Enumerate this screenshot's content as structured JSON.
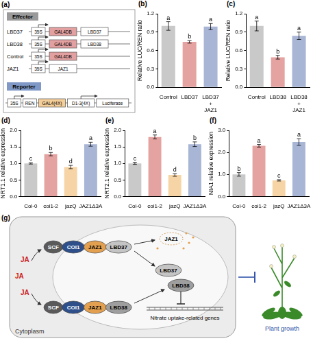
{
  "chart_data": [
    {
      "type": "bar",
      "panel_label": "(b)",
      "y_label": "Relative LUC/REN ratio",
      "categories": [
        "Control",
        "LBD37",
        "LBD37+JAZ1"
      ],
      "values": [
        1.0,
        0.74,
        0.99
      ],
      "errors": [
        0.07,
        0.02,
        0.05
      ],
      "annotations": [
        "a",
        "b",
        "a"
      ],
      "colors": [
        "#c9c9c9",
        "#e4a3a1",
        "#a8b5d5"
      ],
      "ylim": [
        0,
        1.2
      ],
      "yticks": [
        {
          "value": 0,
          "label": "0.0"
        },
        0.3,
        0.6,
        0.9,
        1.2
      ],
      "grid": false
    },
    {
      "type": "bar",
      "panel_label": "(c)",
      "y_label": "Relative LUC/REN ratio",
      "categories": [
        "Control",
        "LBD38",
        "LBD38+JAZ1"
      ],
      "values": [
        1.0,
        0.49,
        0.84
      ],
      "errors": [
        0.08,
        0.03,
        0.06
      ],
      "annotations": [
        "a",
        "b",
        "a"
      ],
      "colors": [
        "#c9c9c9",
        "#e4a3a1",
        "#a8b5d5"
      ],
      "ylim": [
        0,
        1.2
      ],
      "yticks": [
        {
          "value": 0,
          "label": "0.0"
        },
        0.3,
        0.6,
        0.9,
        1.2
      ],
      "grid": false
    },
    {
      "type": "bar",
      "panel_label": "(d)",
      "y_label": "NRT1.1 relative expression",
      "categories": [
        "Col-0",
        "coi1-2",
        "jazQ",
        "JAZ1Δ3A"
      ],
      "values": [
        1.0,
        1.28,
        0.89,
        1.58
      ],
      "errors": [
        0.02,
        0.05,
        0.05,
        0.06
      ],
      "annotations": [
        "c",
        "b",
        "d",
        "a"
      ],
      "colors": [
        "#c9c9c9",
        "#e4a3a1",
        "#f6d4a6",
        "#a8b5d5"
      ],
      "ylim": [
        0,
        2
      ],
      "yticks": [
        {
          "value": 0,
          "label": "0.0"
        },
        0.5,
        {
          "value": 1,
          "label": "1.0"
        },
        1.5,
        {
          "value": 2,
          "label": "2.0"
        }
      ],
      "grid": false
    },
    {
      "type": "bar",
      "panel_label": "(e)",
      "y_label": "NRT2.1 relative expression",
      "categories": [
        "Col-0",
        "coi1-2",
        "jazQ",
        "JAZ1Δ3A"
      ],
      "values": [
        1.0,
        1.8,
        0.65,
        1.58
      ],
      "errors": [
        0.03,
        0.06,
        0.04,
        0.07
      ],
      "annotations": [
        "c",
        "a",
        "d",
        "b"
      ],
      "colors": [
        "#c9c9c9",
        "#e4a3a1",
        "#f6d4a6",
        "#a8b5d5"
      ],
      "ylim": [
        0,
        2
      ],
      "yticks": [
        {
          "value": 0,
          "label": "0.0"
        },
        0.5,
        {
          "value": 1,
          "label": "1.0"
        },
        1.5,
        {
          "value": 2,
          "label": "2.0"
        }
      ],
      "grid": false
    },
    {
      "type": "bar",
      "panel_label": "(f)",
      "y_label": "NIA1 relative expression",
      "categories": [
        "Col-0",
        "coi1-2",
        "jazQ",
        "JAZ1Δ3A"
      ],
      "values": [
        1.0,
        2.3,
        0.73,
        2.47
      ],
      "errors": [
        0.08,
        0.06,
        0.03,
        0.15
      ],
      "annotations": [
        "b",
        "a",
        "c",
        "a"
      ],
      "colors": [
        "#c9c9c9",
        "#e4a3a1",
        "#f6d4a6",
        "#a8b5d5"
      ],
      "ylim": [
        0,
        3
      ],
      "yticks": [
        {
          "value": 0,
          "label": "0.0"
        },
        {
          "value": 1,
          "label": "1.0"
        },
        {
          "value": 2,
          "label": "2.0"
        },
        {
          "value": 3,
          "label": "3.0"
        }
      ],
      "grid": false
    }
  ],
  "panel_a": {
    "label": "(a)",
    "effector_title": "Effector",
    "effector_color": "#9a9a9a",
    "effectors": [
      {
        "name": "LBD37",
        "parts": [
          {
            "text": "35S",
            "color": "#ffffff",
            "promoter": true
          },
          {
            "text": "GAL4DB",
            "color": "#e3a0a0"
          },
          {
            "text": "LBD37",
            "color": "#ffffff"
          }
        ]
      },
      {
        "name": "LBD38",
        "parts": [
          {
            "text": "35S",
            "color": "#ffffff",
            "promoter": true
          },
          {
            "text": "GAL4DB",
            "color": "#e3a0a0"
          },
          {
            "text": "LBD38",
            "color": "#ffffff"
          }
        ]
      },
      {
        "name": "Control",
        "parts": [
          {
            "text": "35S",
            "color": "#ffffff",
            "promoter": true
          },
          {
            "text": "GAL4DB",
            "color": "#e3a0a0"
          }
        ]
      },
      {
        "name": "JAZ1",
        "parts": [
          {
            "text": "35S",
            "color": "#ffffff",
            "promoter": true
          },
          {
            "text": "JAZ1",
            "color": "#ffffff"
          }
        ]
      }
    ],
    "reporter_title": "Reporter",
    "reporter_color": "#7f98c6",
    "reporter_parts": [
      {
        "text": "35S",
        "color": "#ffffff",
        "promoter": true
      },
      {
        "text": "REN",
        "color": "#ffffff"
      },
      {
        "text": "GAL4(4X)",
        "color": "#f5cf9a"
      },
      {
        "text": "D1-3(4X)",
        "color": "#ffffff",
        "promoter": true
      },
      {
        "text": "Luciferase",
        "color": "#ffffff"
      }
    ]
  },
  "panel_g": {
    "label": "(g)",
    "signals": [
      "JA",
      "JA",
      "JA"
    ],
    "complexes": [
      [
        {
          "text": "SCF",
          "color": "#5a5a5a"
        },
        {
          "text": "COI1",
          "color": "#2f4f8a"
        },
        {
          "text": "JAZ1",
          "color": "#e3a050"
        },
        {
          "text": "LBD37",
          "color": "#c4c4c4"
        }
      ],
      [
        {
          "text": "SCF",
          "color": "#5a5a5a"
        },
        {
          "text": "COI1",
          "color": "#2f4f8a"
        },
        {
          "text": "JAZ1",
          "color": "#e3a050"
        },
        {
          "text": "LBD38",
          "color": "#9e9e9e"
        }
      ]
    ],
    "degraded": "JAZ1",
    "released": [
      {
        "text": "LBD37",
        "color": "#c4c4c4"
      },
      {
        "text": "LBD38",
        "color": "#9e9e9e"
      }
    ],
    "target": "Nitrate uptake-related genes",
    "compartment": "Cytoplasm",
    "outcome": "Plant growth"
  }
}
